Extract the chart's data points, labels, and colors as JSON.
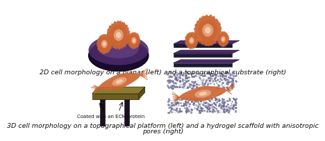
{
  "title_top": "2D cell morphology on a planar (left) and a topographical substrate (right)",
  "title_bottom_line1": "3D cell morphology on a topographical platform (left) and a hydrogel scaffold with anisotropic",
  "title_bottom_line2": "pores (right)",
  "annotation": "Coated with an ECM protein",
  "bg_color": "#ffffff",
  "text_color": "#111111",
  "title_fontsize": 6.8,
  "annotation_fontsize": 5.0,
  "cell_color": "#cc6633",
  "cell_highlight": "#e8a882",
  "cell_bright": "#f5d0b0",
  "substrate_dark": "#1a0a2e",
  "substrate_mid": "#4a2a6a",
  "substrate_light": "#7a5a9a",
  "topo_dark": "#1a1a30",
  "topo_mid": "#3a3a5a",
  "ecm_top": "#8b7a30",
  "ecm_side": "#5a4e1a",
  "ecm_front": "#6b5e20",
  "pillar_color": "#1a1020",
  "hydrogel_color": "#8888aa",
  "hydrogel_dark": "#666688"
}
